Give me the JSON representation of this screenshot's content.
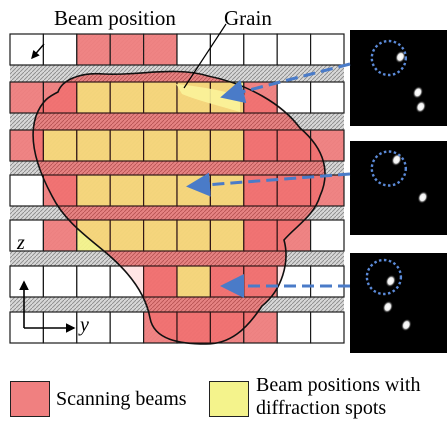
{
  "labels": {
    "beam_position": "Beam position",
    "grain": "Grain",
    "axis_z": "z",
    "axis_y": "y"
  },
  "legend": {
    "scanning_beams": "Scanning beams",
    "diffraction_line1": "Beam positions with",
    "diffraction_line2": "diffraction spots"
  },
  "colors": {
    "scanning": "#f08080",
    "diffraction": "#f4f38c",
    "grain_fill": "#ff0000",
    "arrow": "#4a7bc8",
    "circle": "#5b8ad8",
    "grid_line": "#1a1a1a",
    "panel_bg": "#000000"
  },
  "grid": {
    "rows": [
      [
        "w",
        "w",
        "r",
        "r",
        "r",
        "w",
        "w",
        "w",
        "w",
        "w"
      ],
      [
        "r",
        "r",
        "y",
        "y",
        "y",
        "y",
        "y",
        "r",
        "w",
        "w"
      ],
      [
        "r",
        "y",
        "y",
        "y",
        "y",
        "y",
        "y",
        "r",
        "r",
        "r"
      ],
      [
        "w",
        "r",
        "y",
        "y",
        "y",
        "y",
        "y",
        "r",
        "r",
        "r"
      ],
      [
        "w",
        "r",
        "y",
        "y",
        "y",
        "y",
        "y",
        "r",
        "r",
        "w"
      ],
      [
        "w",
        "w",
        "w",
        "w",
        "r",
        "y",
        "r",
        "r",
        "w",
        "w"
      ],
      [
        "w",
        "w",
        "w",
        "w",
        "r",
        "r",
        "r",
        "r",
        "w",
        "w"
      ]
    ]
  },
  "panels": [
    {
      "spots": [
        [
          0.52,
          0.28
        ],
        [
          0.7,
          0.65
        ],
        [
          0.73,
          0.8
        ]
      ],
      "highlight": [
        0.4,
        0.25
      ]
    },
    {
      "spots": [
        [
          0.48,
          0.2
        ],
        [
          0.75,
          0.6
        ]
      ],
      "highlight": [
        0.4,
        0.25
      ]
    },
    {
      "spots": [
        [
          0.42,
          0.28
        ],
        [
          0.39,
          0.54
        ],
        [
          0.58,
          0.72
        ]
      ],
      "highlight": [
        0.35,
        0.2
      ]
    }
  ]
}
